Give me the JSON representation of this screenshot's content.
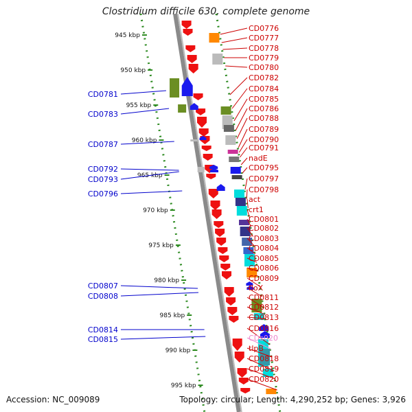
{
  "title": "Clostridium difficile 630, complete genome",
  "footer": {
    "accession": "Accession: NC_009089",
    "topology": "Topology: circular; Length: 4,290,252 bp; Genes: 3,926"
  },
  "colors": {
    "backbone": "#8a8a8a",
    "label_right": "#cc0000",
    "label_left": "#0000cc",
    "label_special": "#ee88cc",
    "gene_red": "#ee1111",
    "gene_blue": "#1a1aee",
    "feat_green": "#6b8e23",
    "feat_grey": "#bbbbbb",
    "feat_cyan": "#00dddd",
    "feat_navy": "#333388",
    "feat_orange": "#ff8800",
    "ruler_dot": "#2e8b22"
  },
  "ruler": [
    {
      "kbp": 945,
      "label": "945 kbp"
    },
    {
      "kbp": 950,
      "label": "950 kbp"
    },
    {
      "kbp": 955,
      "label": "955 kbp"
    },
    {
      "kbp": 960,
      "label": "960 kbp"
    },
    {
      "kbp": 965,
      "label": "965 kbp"
    },
    {
      "kbp": 970,
      "label": "970 kbp"
    },
    {
      "kbp": 975,
      "label": "975 kbp"
    },
    {
      "kbp": 980,
      "label": "980 kbp"
    },
    {
      "kbp": 985,
      "label": "985 kbp"
    },
    {
      "kbp": 990,
      "label": "990 kbp"
    },
    {
      "kbp": 995,
      "label": "995 kbp"
    }
  ],
  "labels_right": [
    {
      "text": "CD0776"
    },
    {
      "text": "CD0777"
    },
    {
      "text": "CD0778"
    },
    {
      "text": "CD0779"
    },
    {
      "text": "CD0780"
    },
    {
      "text": "CD0782"
    },
    {
      "text": "CD0784"
    },
    {
      "text": "CD0785"
    },
    {
      "text": "CD0786"
    },
    {
      "text": "CD0788"
    },
    {
      "text": "CD0789"
    },
    {
      "text": "CD0790"
    },
    {
      "text": "CD0791"
    },
    {
      "text": "nadE"
    },
    {
      "text": "CD0795"
    },
    {
      "text": "CD0797"
    },
    {
      "text": "CD0798"
    },
    {
      "text": "act"
    },
    {
      "text": "crt1"
    },
    {
      "text": "CD0801"
    },
    {
      "text": "CD0802"
    },
    {
      "text": "CD0803"
    },
    {
      "text": "CD0804"
    },
    {
      "text": "CD0805"
    },
    {
      "text": "CD0806"
    },
    {
      "text": "CD0809"
    },
    {
      "text": "floX"
    },
    {
      "text": "CD0811"
    },
    {
      "text": "CD0812"
    },
    {
      "text": "CD0813"
    },
    {
      "text": "CD0816"
    },
    {
      "text": "CDs020",
      "special": true
    },
    {
      "text": "tlpB"
    },
    {
      "text": "CD0818"
    },
    {
      "text": "CD0819"
    },
    {
      "text": "CD0820"
    }
  ],
  "labels_left": [
    {
      "text": "CD0781"
    },
    {
      "text": "CD0783"
    },
    {
      "text": "CD0787"
    },
    {
      "text": "CD0792"
    },
    {
      "text": "CD0793"
    },
    {
      "text": "CD0796"
    },
    {
      "text": "CD0807"
    },
    {
      "text": "CD0808"
    },
    {
      "text": "CD0814"
    },
    {
      "text": "CD0815"
    }
  ]
}
